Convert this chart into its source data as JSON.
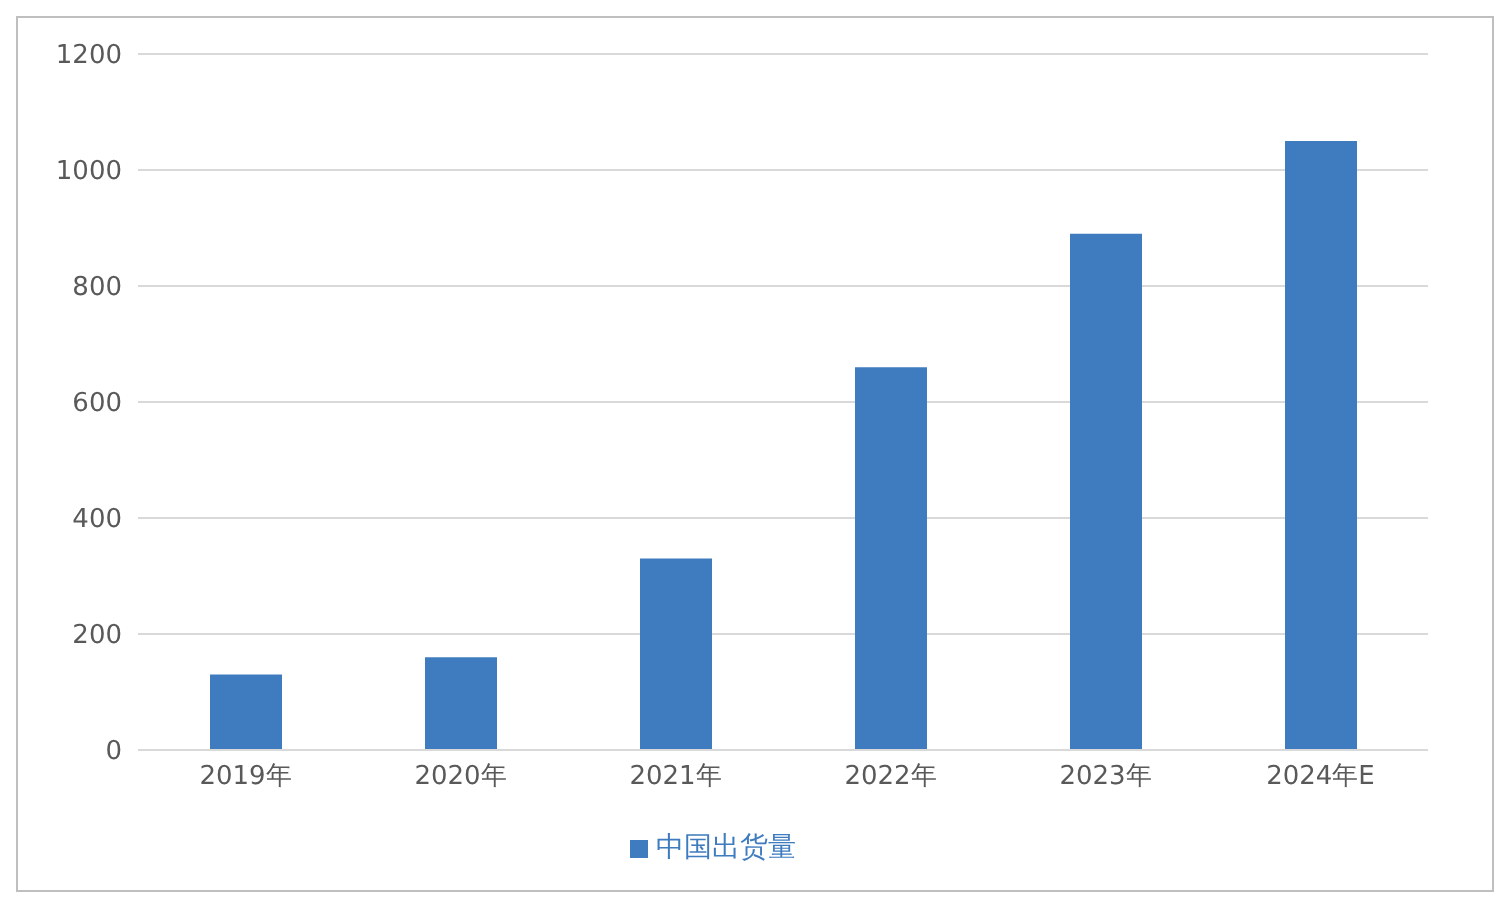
{
  "chart_data": {
    "type": "bar",
    "categories": [
      "2019年",
      "2020年",
      "2021年",
      "2022年",
      "2023年",
      "2024年E"
    ],
    "series": [
      {
        "name": "中国出货量",
        "color": "#3f7cbf",
        "values": [
          130,
          160,
          330,
          660,
          890,
          1050
        ]
      }
    ],
    "ylim": [
      0,
      1200
    ],
    "yticks": [
      0,
      200,
      400,
      600,
      800,
      1000,
      1200
    ],
    "grid": "y",
    "legend": "bottom"
  }
}
